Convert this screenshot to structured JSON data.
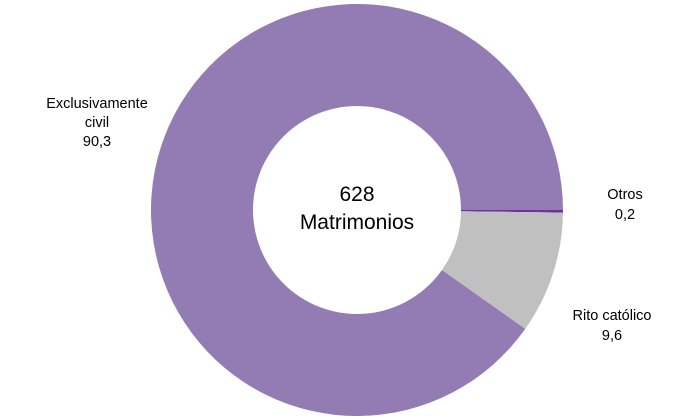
{
  "chart_data": {
    "type": "pie",
    "subtype": "donut",
    "center_label": {
      "value": "628",
      "text": "Matrimonios"
    },
    "slices": [
      {
        "name": "Otros",
        "value": 0.2,
        "value_label": "0,2",
        "label_lines": [
          "Otros"
        ],
        "color": "#7030a0"
      },
      {
        "name": "Rito católico",
        "value": 9.6,
        "value_label": "9,6",
        "label_lines": [
          "Rito católico"
        ],
        "color": "#c0c0c0"
      },
      {
        "name": "Exclusivamente civil",
        "value": 90.3,
        "value_label": "90,3",
        "label_lines": [
          "Exclusivamente",
          "civil"
        ],
        "color": "#937cb4"
      }
    ],
    "start_direction": "east",
    "direction": "clockwise",
    "legend": "none"
  }
}
